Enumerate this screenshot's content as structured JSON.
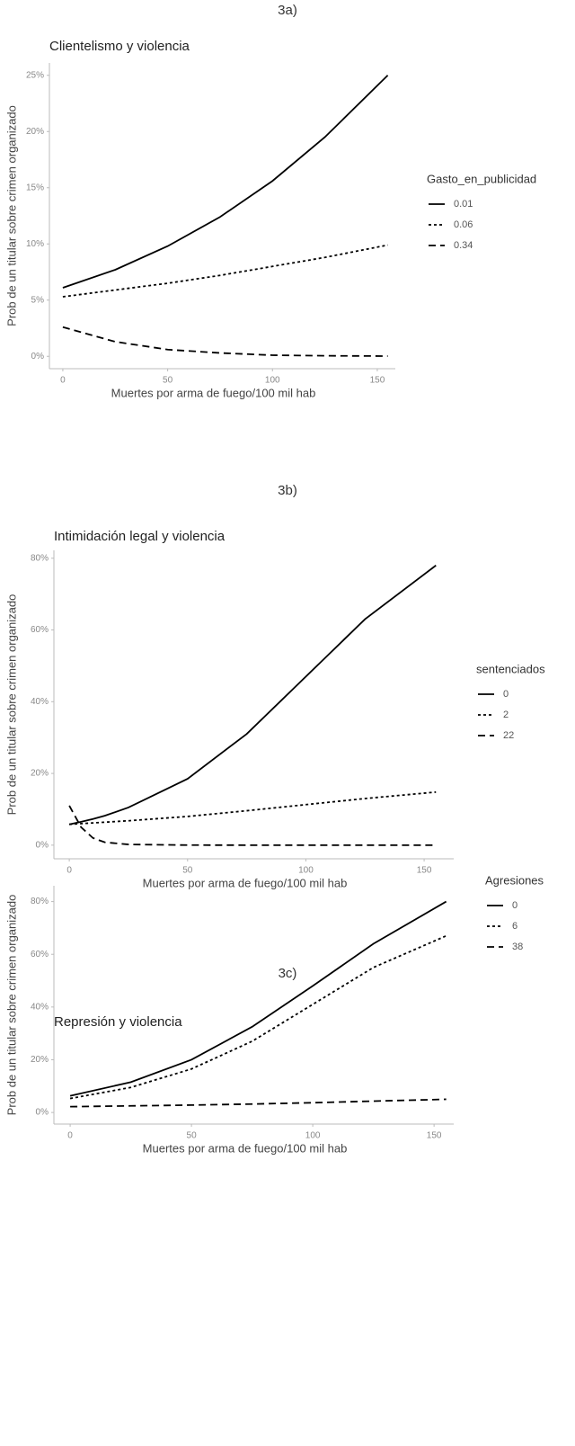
{
  "chart_data": [
    {
      "type": "line",
      "heading": "3a)",
      "title": "Clientelismo y violencia",
      "x_label": "Muertes por arma de fuego/100 mil hab",
      "y_label": "Prob de un titular sobre crimen organizado",
      "legend_title": "Gasto_en_publicidad",
      "legend": "right",
      "grid": false,
      "x": [
        0,
        25,
        50,
        75,
        100,
        125,
        155
      ],
      "series": [
        {
          "name": "0.01",
          "color": "#000000",
          "dash": "solid",
          "values": [
            6.1,
            7.7,
            9.8,
            12.4,
            15.6,
            19.5,
            25.0
          ]
        },
        {
          "name": "0.06",
          "color": "#000000",
          "dash": "dotted",
          "values": [
            5.3,
            5.9,
            6.5,
            7.2,
            8.0,
            8.8,
            9.9
          ]
        },
        {
          "name": "0.34",
          "color": "#000000",
          "dash": "dashed",
          "values": [
            2.6,
            1.3,
            0.6,
            0.3,
            0.1,
            0.05,
            0.02
          ]
        }
      ],
      "xlim": [
        -6.4,
        158.6
      ],
      "xticks": [
        0,
        50,
        100,
        150
      ],
      "ylim": [
        -1.1,
        26.1
      ],
      "yticks": [
        {
          "value": 0,
          "label": "0%"
        },
        {
          "value": 5,
          "label": "5%"
        },
        {
          "value": 10,
          "label": "10%"
        },
        {
          "value": 15,
          "label": "15%"
        },
        {
          "value": 20,
          "label": "20%"
        },
        {
          "value": 25,
          "label": "25%"
        }
      ]
    },
    {
      "type": "line",
      "heading": "3b)",
      "title": "Intimidación legal y violencia",
      "x_label": "Muertes por arma de fuego/100 mil hab",
      "y_label": "Prob de un titular sobre crimen organizado",
      "legend_title": "sentenciados",
      "legend": "right",
      "grid": false,
      "x": [
        0,
        5,
        10,
        15,
        25,
        50,
        75,
        100,
        125,
        155
      ],
      "series": [
        {
          "name": "0",
          "color": "#000000",
          "dash": "solid",
          "values": [
            5.8,
            6.5,
            7.3,
            8.2,
            10.5,
            18.5,
            31,
            47,
            63,
            78
          ]
        },
        {
          "name": "2",
          "color": "#000000",
          "dash": "dotted",
          "values": [
            5.8,
            6.0,
            6.2,
            6.4,
            6.8,
            8,
            9.6,
            11.3,
            13,
            14.8
          ]
        },
        {
          "name": "22",
          "color": "#000000",
          "dash": "dashed",
          "values": [
            11,
            5,
            2,
            0.8,
            0.2,
            0.02,
            0,
            0,
            0,
            0
          ]
        }
      ],
      "xlim": [
        -6.5,
        162.5
      ],
      "xticks": [
        0,
        50,
        100,
        150
      ],
      "ylim": [
        -3.8,
        82.2
      ],
      "yticks": [
        {
          "value": 0,
          "label": "0%"
        },
        {
          "value": 20,
          "label": "20%"
        },
        {
          "value": 40,
          "label": "40%"
        },
        {
          "value": 60,
          "label": "60%"
        },
        {
          "value": 80,
          "label": "80%"
        }
      ]
    },
    {
      "type": "line",
      "heading": "3c)",
      "title": "Represión y violencia",
      "x_label": "Muertes por arma de fuego/100 mil hab",
      "y_label": "Prob de un titular sobre crimen organizado",
      "legend_title": "Agresiones",
      "legend": "right",
      "grid": false,
      "x": [
        0,
        25,
        50,
        75,
        100,
        125,
        155
      ],
      "series": [
        {
          "name": "0",
          "color": "#000000",
          "dash": "solid",
          "values": [
            6.3,
            11.5,
            20,
            32.5,
            48,
            64,
            80
          ]
        },
        {
          "name": "6",
          "color": "#000000",
          "dash": "dotted",
          "values": [
            5.3,
            9.5,
            16.5,
            27,
            41,
            55,
            67
          ]
        },
        {
          "name": "38",
          "color": "#000000",
          "dash": "dashed",
          "values": [
            2.2,
            2.5,
            2.8,
            3.2,
            3.7,
            4.3,
            5.0
          ]
        }
      ],
      "xlim": [
        -6.7,
        158.1
      ],
      "xticks": [
        0,
        50,
        100,
        150
      ],
      "ylim": [
        -4.4,
        86
      ],
      "yticks": [
        {
          "value": 0,
          "label": "0%"
        },
        {
          "value": 20,
          "label": "20%"
        },
        {
          "value": 40,
          "label": "40%"
        },
        {
          "value": 60,
          "label": "60%"
        },
        {
          "value": 80,
          "label": "80%"
        }
      ]
    }
  ]
}
